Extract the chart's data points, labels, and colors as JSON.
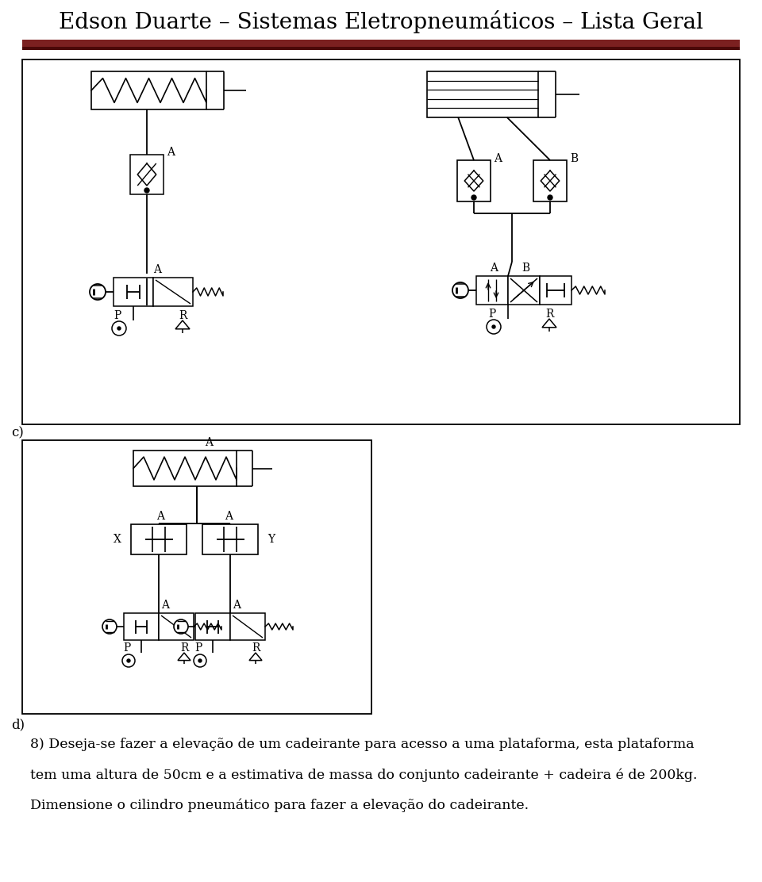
{
  "title": "Edson Duarte – Sistemas Eletropneumáticos – Lista Geral",
  "title_fontsize": 20,
  "title_color": "#000000",
  "bar_color1": "#7B2020",
  "bar_color2": "#4A0808",
  "question_text_line1": "8) Deseja-se fazer a elevação de um cadeirante para acesso a uma plataforma, esta plataforma",
  "question_text_line2": "tem uma altura de 50cm e a estimativa de massa do conjunto cadeirante + cadeira é de 200kg.",
  "question_text_line3": "Dimensione o cilindro pneumático para fazer a elevação do cadeirante.",
  "question_fontsize": 12.5,
  "background_color": "#ffffff",
  "fig_width": 9.6,
  "fig_height": 11.12,
  "label_c": "c)",
  "label_d": "d)"
}
